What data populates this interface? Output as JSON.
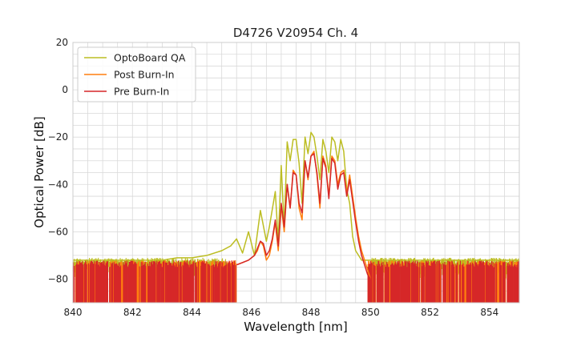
{
  "chart_data": {
    "type": "line",
    "title": "D4726 V20954 Ch. 4",
    "xlabel": "Wavelength [nm]",
    "ylabel": "Optical Power [dB]",
    "xlim": [
      840,
      855
    ],
    "ylim": [
      -90,
      20
    ],
    "xticks": [
      840,
      842,
      844,
      846,
      848,
      850,
      852,
      854
    ],
    "yticks": [
      20,
      0,
      -20,
      -40,
      -60,
      -80
    ],
    "grid": true,
    "legend_position": "top-left",
    "noise_floor": {
      "OptoBoard QA": {
        "x_range": [
          840,
          855
        ],
        "y_min": -90,
        "y_max": -71
      },
      "Post Burn-In": {
        "x_range": [
          840,
          855
        ],
        "y_min": -90,
        "y_max": -72
      },
      "Pre Burn-In": {
        "x_range": [
          840,
          855
        ],
        "y_min": -90,
        "y_max": -72
      }
    },
    "series": [
      {
        "name": "OptoBoard QA",
        "color": "#bcbd22",
        "x": [
          840,
          841,
          842,
          843,
          843.5,
          844,
          844.5,
          845,
          845.3,
          845.5,
          845.7,
          845.9,
          846.1,
          846.3,
          846.5,
          846.6,
          846.8,
          846.9,
          847.0,
          847.1,
          847.2,
          847.3,
          847.4,
          847.5,
          847.6,
          847.7,
          847.8,
          847.9,
          848.0,
          848.1,
          848.2,
          848.3,
          848.4,
          848.5,
          848.6,
          848.7,
          848.8,
          848.9,
          849.0,
          849.1,
          849.2,
          849.3,
          849.4,
          849.5,
          849.6,
          849.7,
          849.8,
          849.9,
          850.0,
          851,
          853,
          855
        ],
        "y": [
          -72,
          -72,
          -72,
          -72,
          -71,
          -71,
          -70,
          -68,
          -66,
          -63,
          -69,
          -60,
          -70,
          -51,
          -64,
          -58,
          -43,
          -64,
          -32,
          -58,
          -22,
          -30,
          -21,
          -21,
          -31,
          -48,
          -20,
          -27,
          -18,
          -20,
          -28,
          -38,
          -21,
          -26,
          -35,
          -20,
          -22,
          -30,
          -21,
          -26,
          -42,
          -48,
          -62,
          -68,
          -70,
          -72,
          -72,
          -72,
          -72,
          -72,
          -72,
          -72
        ]
      },
      {
        "name": "Post Burn-In",
        "color": "#ff7f0e",
        "x": [
          845.5,
          845.7,
          845.9,
          846.1,
          846.2,
          846.3,
          846.4,
          846.5,
          846.6,
          846.7,
          846.8,
          846.9,
          847.0,
          847.1,
          847.2,
          847.3,
          847.4,
          847.5,
          847.6,
          847.7,
          847.8,
          847.9,
          848.0,
          848.1,
          848.2,
          848.3,
          848.4,
          848.5,
          848.6,
          848.7,
          848.8,
          848.9,
          849.0,
          849.1,
          849.2,
          849.3,
          849.4,
          849.5,
          849.6,
          849.7,
          849.8,
          849.9,
          850.0
        ],
        "y": [
          -74,
          -73,
          -72,
          -70,
          -68,
          -64,
          -66,
          -72,
          -70,
          -64,
          -56,
          -68,
          -49,
          -60,
          -40,
          -50,
          -34,
          -36,
          -50,
          -55,
          -30,
          -38,
          -28,
          -26,
          -36,
          -50,
          -28,
          -32,
          -45,
          -28,
          -30,
          -40,
          -35,
          -34,
          -44,
          -36,
          -45,
          -54,
          -62,
          -68,
          -72,
          -76,
          -80
        ]
      },
      {
        "name": "Pre Burn-In",
        "color": "#d62728",
        "x": [
          845.5,
          845.7,
          845.9,
          846.1,
          846.2,
          846.3,
          846.4,
          846.5,
          846.6,
          846.7,
          846.8,
          846.9,
          847.0,
          847.1,
          847.2,
          847.3,
          847.4,
          847.5,
          847.6,
          847.7,
          847.8,
          847.9,
          848.0,
          848.1,
          848.2,
          848.3,
          848.4,
          848.5,
          848.6,
          848.7,
          848.8,
          848.9,
          849.0,
          849.1,
          849.2,
          849.3,
          849.4,
          849.5,
          849.6,
          849.7,
          849.8,
          849.9,
          850.0
        ],
        "y": [
          -74,
          -73,
          -72,
          -70,
          -67,
          -64,
          -65,
          -70,
          -68,
          -63,
          -55,
          -66,
          -48,
          -58,
          -40,
          -50,
          -35,
          -36,
          -48,
          -52,
          -30,
          -37,
          -28,
          -27,
          -35,
          -48,
          -29,
          -33,
          -46,
          -29,
          -31,
          -42,
          -36,
          -35,
          -45,
          -38,
          -47,
          -56,
          -64,
          -70,
          -74,
          -78,
          -80
        ]
      }
    ]
  }
}
